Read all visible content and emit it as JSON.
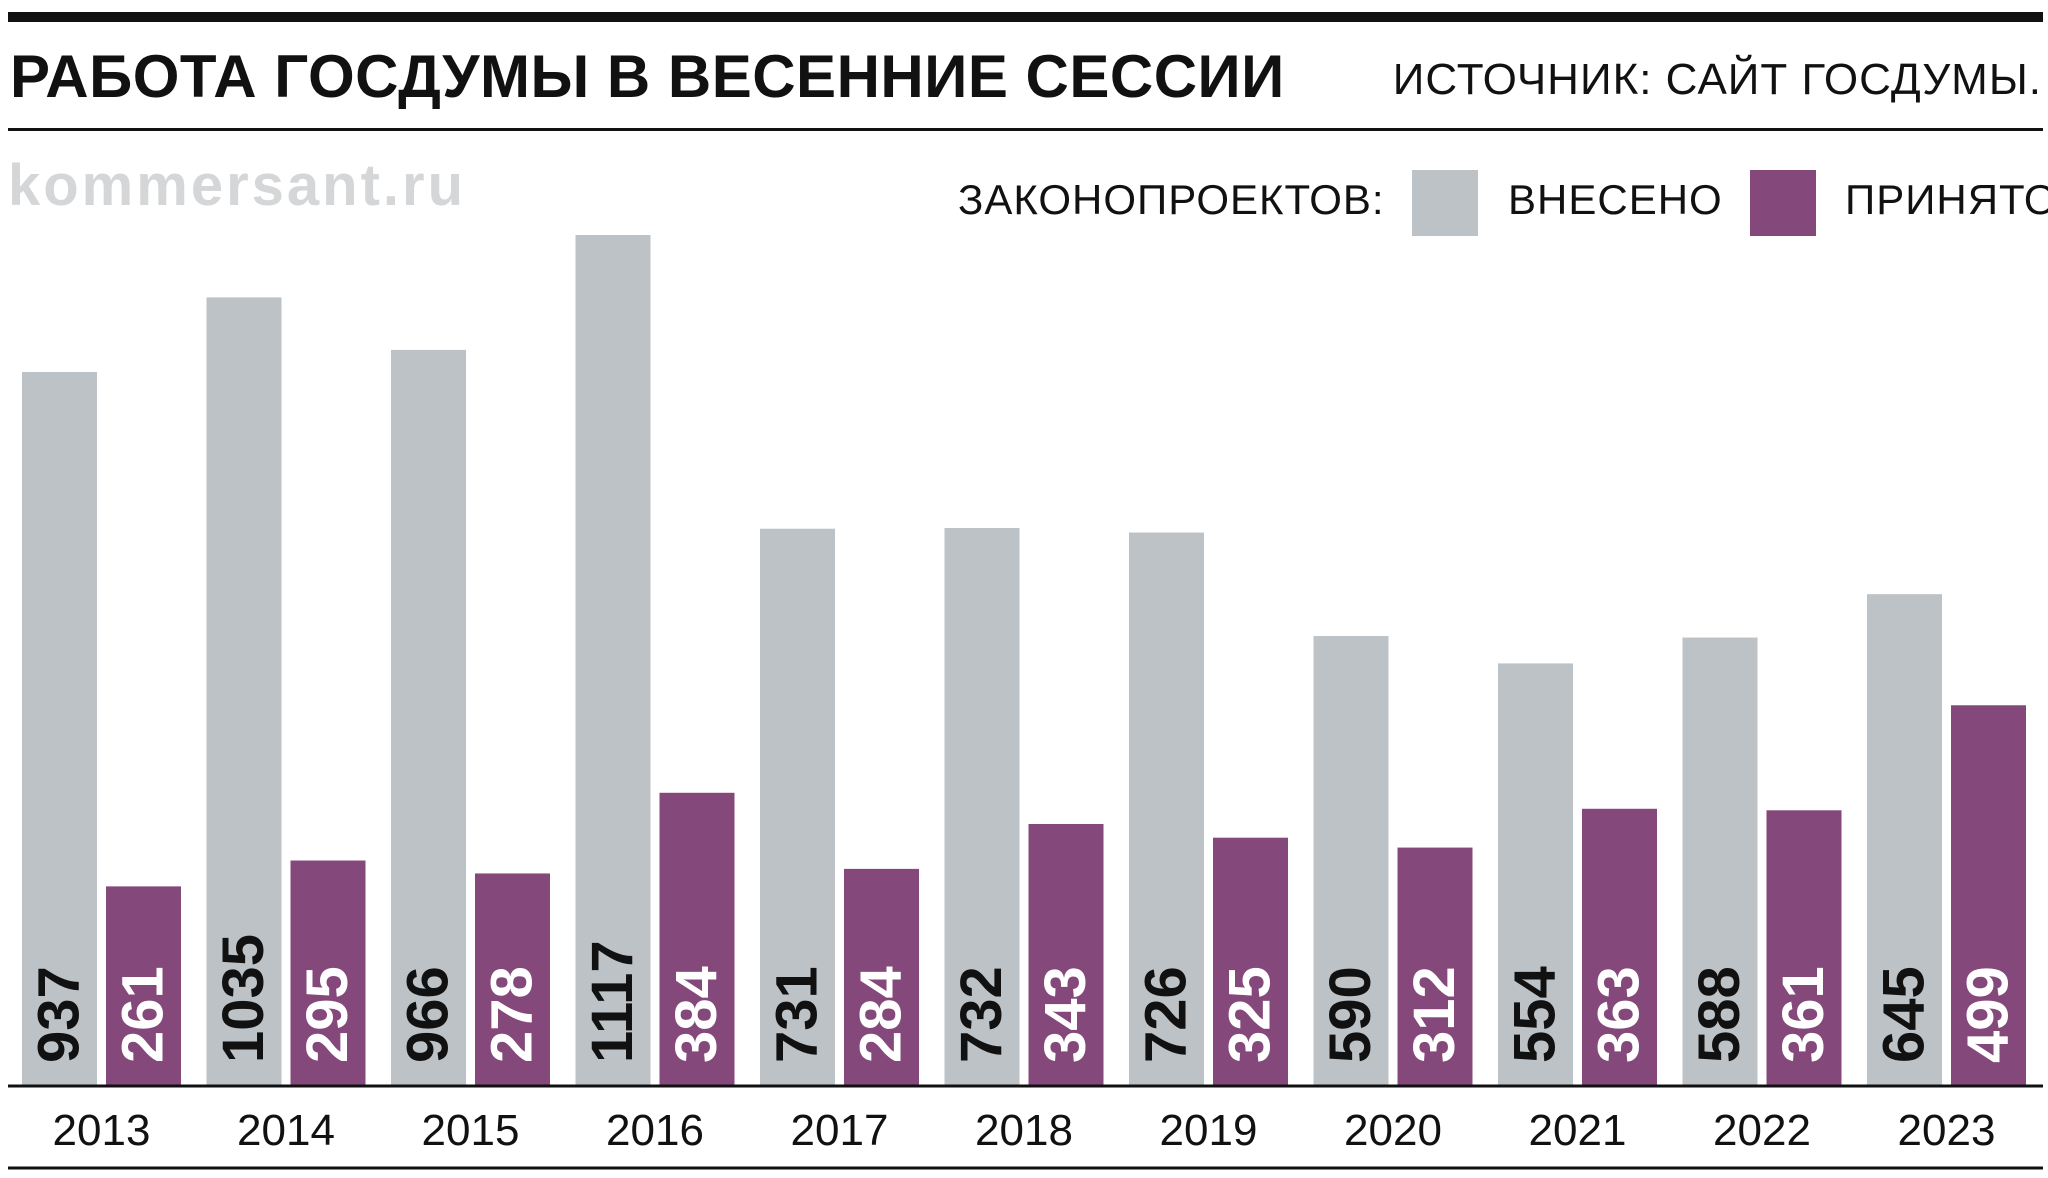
{
  "header": {
    "title": "РАБОТА ГОСДУМЫ В ВЕСЕННИЕ СЕССИИ",
    "source": "ИСТОЧНИК: САЙТ ГОСДУМЫ."
  },
  "watermark": "kommersant.ru",
  "legend": {
    "label": "ЗАКОНОПРОЕКТОВ:",
    "items": [
      {
        "label": "ВНЕСЕНО",
        "color": "#bcc2c6"
      },
      {
        "label": "ПРИНЯТО",
        "color": "#84487a"
      }
    ]
  },
  "chart_data": {
    "type": "bar",
    "categories": [
      "2013",
      "2014",
      "2015",
      "2016",
      "2017",
      "2018",
      "2019",
      "2020",
      "2021",
      "2022",
      "2023"
    ],
    "series": [
      {
        "name": "ВНЕСЕНО",
        "color": "#bcc2c6",
        "values": [
          937,
          1035,
          966,
          1117,
          731,
          732,
          726,
          590,
          554,
          588,
          645
        ]
      },
      {
        "name": "ПРИНЯТО",
        "color": "#84487a",
        "values": [
          261,
          295,
          278,
          384,
          284,
          343,
          325,
          312,
          363,
          361,
          499
        ]
      }
    ],
    "title": "РАБОТА ГОСДУМЫ В ВЕСЕННИЕ СЕССИИ",
    "xlabel": "",
    "ylabel": "",
    "ylim": [
      0,
      1117
    ],
    "grid": false,
    "legend_position": "top-right"
  }
}
